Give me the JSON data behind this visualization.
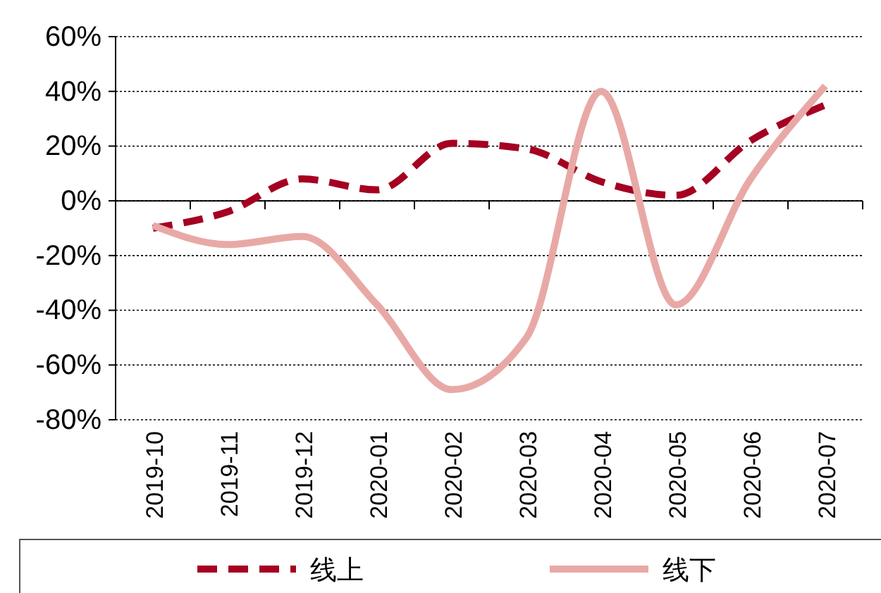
{
  "chart_data": {
    "type": "line",
    "categories": [
      "2019-10",
      "2019-11",
      "2019-12",
      "2020-01",
      "2020-02",
      "2020-03",
      "2020-04",
      "2020-05",
      "2020-06",
      "2020-07"
    ],
    "series": [
      {
        "name": "线上",
        "color": "#a50021",
        "line_style": "dashed",
        "values": [
          -10,
          -4,
          8,
          4,
          21,
          19,
          7,
          2,
          22,
          35
        ]
      },
      {
        "name": "线下",
        "color": "#e8a9a6",
        "line_style": "solid",
        "values": [
          -9,
          -16,
          -13,
          -38,
          -69,
          -50,
          40,
          -38,
          8,
          42
        ]
      }
    ],
    "ylim": [
      -80,
      60
    ],
    "yticks": [
      {
        "value": -80,
        "label": "-80%"
      },
      {
        "value": -60,
        "label": "-60%"
      },
      {
        "value": -40,
        "label": "-40%"
      },
      {
        "value": -20,
        "label": "-20%"
      },
      {
        "value": 0,
        "label": "0%"
      },
      {
        "value": 20,
        "label": "20%"
      },
      {
        "value": 40,
        "label": "40%"
      },
      {
        "value": 60,
        "label": "60%"
      }
    ],
    "grid": "y",
    "legend": "bottom",
    "marker": "none"
  }
}
